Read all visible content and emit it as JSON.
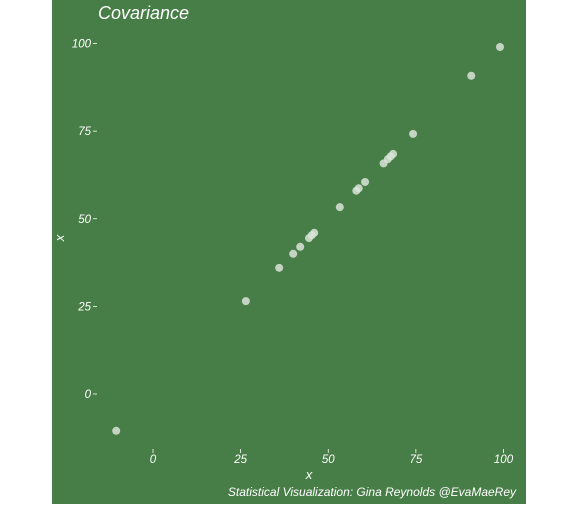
{
  "chart_data": {
    "type": "scatter",
    "title": "Covariance",
    "xlabel": "x",
    "ylabel": "x",
    "caption": "Statistical Visualization: Gina Reynolds @EvaMaeRey",
    "xlim": [
      -12,
      99
    ],
    "ylim": [
      -12,
      99
    ],
    "xticks": [
      0,
      25,
      50,
      75,
      100
    ],
    "xtick_labels": [
      "0",
      "25",
      "50",
      "75",
      "100"
    ],
    "yticks": [
      0,
      25,
      50,
      75,
      100
    ],
    "ytick_labels": [
      "0",
      "25",
      "50",
      "75",
      "100"
    ],
    "grid": false,
    "background": "#477d46",
    "point_color": "#d9e4d8",
    "points": [
      {
        "x": -10.5,
        "y": -10.5
      },
      {
        "x": 26.5,
        "y": 26.5
      },
      {
        "x": 36,
        "y": 36
      },
      {
        "x": 40,
        "y": 40
      },
      {
        "x": 42,
        "y": 42
      },
      {
        "x": 44.5,
        "y": 44.5
      },
      {
        "x": 45.3,
        "y": 45.3
      },
      {
        "x": 46,
        "y": 46
      },
      {
        "x": 53.3,
        "y": 53.3
      },
      {
        "x": 58,
        "y": 58
      },
      {
        "x": 58.7,
        "y": 58.7
      },
      {
        "x": 60.5,
        "y": 60.5
      },
      {
        "x": 65.8,
        "y": 65.8
      },
      {
        "x": 67,
        "y": 67
      },
      {
        "x": 67.8,
        "y": 67.8
      },
      {
        "x": 68.5,
        "y": 68.5
      },
      {
        "x": 74.2,
        "y": 74.2
      },
      {
        "x": 90.8,
        "y": 90.8
      },
      {
        "x": 99,
        "y": 99
      }
    ]
  }
}
